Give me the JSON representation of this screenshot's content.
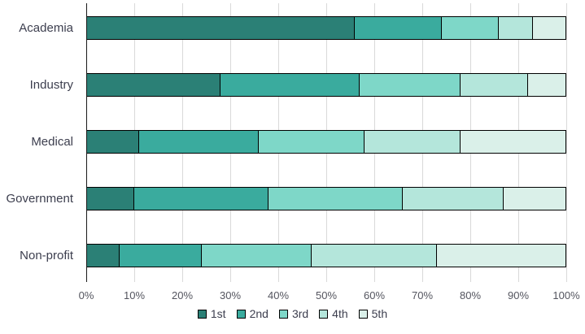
{
  "chart_data": {
    "type": "bar",
    "orientation": "horizontal",
    "stacked": true,
    "title": "",
    "xlabel": "",
    "ylabel": "",
    "categories": [
      "Academia",
      "Industry",
      "Medical",
      "Government",
      "Non-profit"
    ],
    "series": [
      {
        "name": "1st",
        "color": "#2b8076",
        "values": [
          56,
          28,
          11,
          10,
          7
        ]
      },
      {
        "name": "2nd",
        "color": "#3aab9e",
        "values": [
          18,
          29,
          25,
          28,
          17
        ]
      },
      {
        "name": "3rd",
        "color": "#7ed7c8",
        "values": [
          12,
          21,
          22,
          28,
          23
        ]
      },
      {
        "name": "4th",
        "color": "#b4e6db",
        "values": [
          7,
          14,
          20,
          21,
          26
        ]
      },
      {
        "name": "5th",
        "color": "#daf0e9",
        "values": [
          7,
          8,
          22,
          13,
          27
        ]
      }
    ],
    "xlim": [
      0,
      100
    ],
    "x_tick_labels": [
      "0%",
      "10%",
      "20%",
      "30%",
      "40%",
      "50%",
      "60%",
      "70%",
      "80%",
      "90%",
      "100%"
    ],
    "grid": true,
    "legend_position": "bottom",
    "legend_labels": [
      "1st",
      "2nd",
      "3rd",
      "4th",
      "5th"
    ]
  },
  "styles": {
    "gridline_color": "#d9d9d9",
    "axis_line_color": "#1a1a1a",
    "segment_border_color": "#000000",
    "category_label_color": "#3c3e4e",
    "tick_label_color": "#54555f",
    "background_color": "#ffffff"
  }
}
